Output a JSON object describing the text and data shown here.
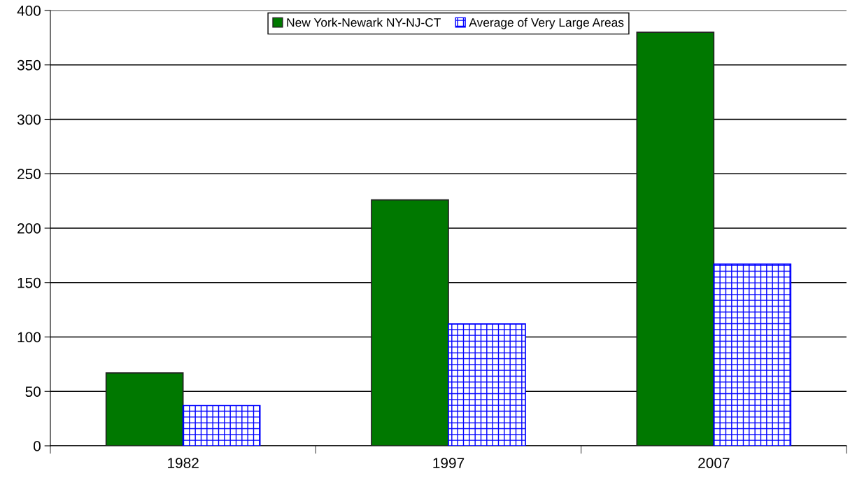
{
  "chart_data": {
    "type": "bar",
    "categories": [
      "1982",
      "1997",
      "2007"
    ],
    "series": [
      {
        "name": "New York-Newark NY-NJ-CT",
        "color": "#007800",
        "values": [
          67,
          226,
          380
        ]
      },
      {
        "name": "Average of Very Large Areas",
        "color": "#0000ff",
        "values": [
          37,
          112,
          167
        ]
      }
    ],
    "ylim": [
      0,
      400
    ],
    "yticks": [
      0,
      50,
      100,
      150,
      200,
      250,
      300,
      350,
      400
    ],
    "grid": "y",
    "legend": "top"
  }
}
